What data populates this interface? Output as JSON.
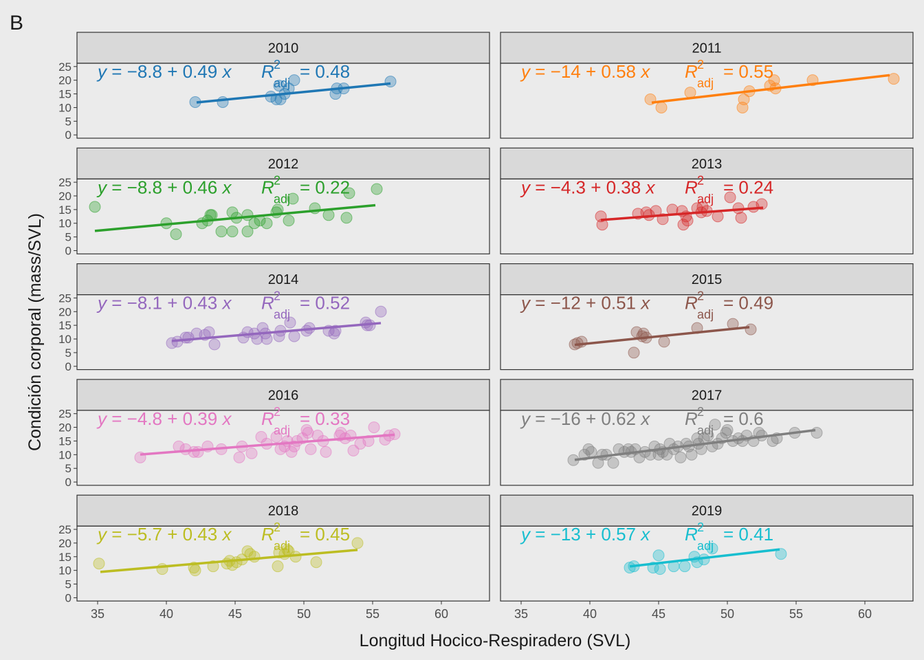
{
  "panel_letter": "B",
  "colors": {
    "background": "#ebebeb",
    "strip": "#d9d9d9",
    "text": "#1a1a1a",
    "tick_text": "#4d4d4d",
    "panel_border": "#333333"
  },
  "chart_data": [
    {
      "type": "scatter",
      "title": "2010",
      "color": "#1f77b4",
      "equation_parts": {
        "intercept": "8.8",
        "slope": "0.49",
        "r2": "0.48"
      },
      "line": {
        "intercept": -8.8,
        "slope": 0.49,
        "x_range": [
          42.2,
          56.3
        ]
      },
      "points": [
        [
          42.1,
          12
        ],
        [
          44.1,
          12
        ],
        [
          47.6,
          14
        ],
        [
          48.0,
          13
        ],
        [
          48.2,
          18
        ],
        [
          48.3,
          13
        ],
        [
          48.6,
          15
        ],
        [
          48.9,
          17
        ],
        [
          49.3,
          20
        ],
        [
          52.3,
          15
        ],
        [
          52.4,
          17
        ],
        [
          52.9,
          17
        ],
        [
          56.3,
          19.5
        ]
      ]
    },
    {
      "type": "scatter",
      "title": "2011",
      "color": "#ff7f0e",
      "equation_parts": {
        "intercept": "14",
        "slope": "0.58",
        "r2": "0.55"
      },
      "line": {
        "intercept": -14,
        "slope": 0.58,
        "x_range": [
          44.5,
          61.8
        ]
      },
      "points": [
        [
          44.4,
          13
        ],
        [
          45.2,
          10
        ],
        [
          47.3,
          15.5
        ],
        [
          51.1,
          10
        ],
        [
          51.2,
          13
        ],
        [
          51.6,
          16
        ],
        [
          53.1,
          18
        ],
        [
          53.4,
          20
        ],
        [
          53.5,
          17
        ],
        [
          56.2,
          20
        ],
        [
          62.1,
          20.5
        ]
      ]
    },
    {
      "type": "scatter",
      "title": "2012",
      "color": "#2ca02c",
      "equation_parts": {
        "intercept": "8.8",
        "slope": "0.46",
        "r2": "0.22"
      },
      "line": {
        "intercept": -8.8,
        "slope": 0.46,
        "x_range": [
          34.8,
          55.2
        ]
      },
      "points": [
        [
          34.8,
          16
        ],
        [
          40.0,
          10
        ],
        [
          40.7,
          6
        ],
        [
          42.6,
          10
        ],
        [
          43.0,
          11
        ],
        [
          43.2,
          13
        ],
        [
          43.3,
          13
        ],
        [
          44.0,
          7
        ],
        [
          44.8,
          7
        ],
        [
          44.8,
          14
        ],
        [
          45.1,
          12
        ],
        [
          45.9,
          7
        ],
        [
          45.9,
          13
        ],
        [
          46.4,
          10
        ],
        [
          46.8,
          11
        ],
        [
          47.3,
          10
        ],
        [
          48.0,
          14
        ],
        [
          48.1,
          15
        ],
        [
          48.9,
          11
        ],
        [
          49.2,
          19
        ],
        [
          50.8,
          15.5
        ],
        [
          51.8,
          13
        ],
        [
          53.1,
          12
        ],
        [
          53.3,
          21
        ],
        [
          55.3,
          22.5
        ]
      ]
    },
    {
      "type": "scatter",
      "title": "2013",
      "color": "#d62728",
      "equation_parts": {
        "intercept": "4.3",
        "slope": "0.38",
        "r2": "0.24"
      },
      "line": {
        "intercept": -4.3,
        "slope": 0.38,
        "x_range": [
          40.8,
          52.6
        ]
      },
      "points": [
        [
          40.8,
          12.5
        ],
        [
          40.9,
          9.5
        ],
        [
          43.5,
          13.5
        ],
        [
          44.1,
          14
        ],
        [
          44.3,
          13
        ],
        [
          44.8,
          14.5
        ],
        [
          45.3,
          11.5
        ],
        [
          46.0,
          15
        ],
        [
          46.7,
          14.5
        ],
        [
          46.8,
          9.5
        ],
        [
          47.0,
          12.5
        ],
        [
          47.1,
          11
        ],
        [
          47.8,
          15.5
        ],
        [
          48.1,
          14
        ],
        [
          48.2,
          16
        ],
        [
          48.5,
          14.5
        ],
        [
          49.3,
          12.5
        ],
        [
          50.2,
          19.5
        ],
        [
          50.8,
          15.5
        ],
        [
          51.0,
          12
        ],
        [
          51.9,
          16
        ],
        [
          52.5,
          17
        ]
      ]
    },
    {
      "type": "scatter",
      "title": "2014",
      "color": "#9467bd",
      "equation_parts": {
        "intercept": "8.1",
        "slope": "0.43",
        "r2": "0.52"
      },
      "line": {
        "intercept": -8.1,
        "slope": 0.43,
        "x_range": [
          40.4,
          55.6
        ]
      },
      "points": [
        [
          40.4,
          8.5
        ],
        [
          40.8,
          9
        ],
        [
          41.4,
          10.5
        ],
        [
          41.6,
          10.5
        ],
        [
          42.2,
          12
        ],
        [
          42.8,
          11.5
        ],
        [
          43.1,
          12.5
        ],
        [
          43.5,
          8
        ],
        [
          45.6,
          10.5
        ],
        [
          45.9,
          12.5
        ],
        [
          46.4,
          12
        ],
        [
          46.6,
          10
        ],
        [
          47.0,
          14
        ],
        [
          47.2,
          12
        ],
        [
          47.3,
          10
        ],
        [
          48.2,
          11
        ],
        [
          48.3,
          13
        ],
        [
          49.3,
          11
        ],
        [
          49.0,
          16
        ],
        [
          50.2,
          13
        ],
        [
          50.4,
          14
        ],
        [
          51.8,
          13
        ],
        [
          52.2,
          12
        ],
        [
          52.3,
          13
        ],
        [
          54.5,
          16
        ],
        [
          54.6,
          15
        ],
        [
          54.8,
          15
        ],
        [
          55.6,
          20
        ]
      ]
    },
    {
      "type": "scatter",
      "title": "2015",
      "color": "#8c564b",
      "equation_parts": {
        "intercept": "12",
        "slope": "0.51",
        "r2": "0.49"
      },
      "line": {
        "intercept": -12,
        "slope": 0.51,
        "x_range": [
          38.9,
          51.6
        ]
      },
      "points": [
        [
          38.9,
          8
        ],
        [
          39.1,
          8.5
        ],
        [
          39.4,
          9
        ],
        [
          43.2,
          5
        ],
        [
          43.4,
          12.5
        ],
        [
          43.8,
          11
        ],
        [
          43.9,
          12
        ],
        [
          44.1,
          10.5
        ],
        [
          45.4,
          9
        ],
        [
          47.8,
          14
        ],
        [
          50.4,
          15.5
        ],
        [
          51.7,
          13.5
        ]
      ]
    },
    {
      "type": "scatter",
      "title": "2016",
      "color": "#e377c2",
      "equation_parts": {
        "intercept": "4.8",
        "slope": "0.39",
        "r2": "0.33"
      },
      "line": {
        "intercept": -4.8,
        "slope": 0.39,
        "x_range": [
          38.1,
          56.6
        ]
      },
      "points": [
        [
          38.1,
          9
        ],
        [
          40.9,
          13
        ],
        [
          41.4,
          12
        ],
        [
          42.0,
          11
        ],
        [
          42.3,
          11
        ],
        [
          43.0,
          13
        ],
        [
          44.0,
          12
        ],
        [
          45.3,
          9
        ],
        [
          45.5,
          13
        ],
        [
          46.2,
          10.5
        ],
        [
          46.9,
          16.5
        ],
        [
          47.3,
          14
        ],
        [
          48.0,
          16.5
        ],
        [
          48.3,
          12
        ],
        [
          48.6,
          13
        ],
        [
          48.8,
          15
        ],
        [
          49.1,
          11
        ],
        [
          49.3,
          13
        ],
        [
          49.5,
          15
        ],
        [
          49.9,
          16
        ],
        [
          50.2,
          19
        ],
        [
          50.3,
          18
        ],
        [
          50.5,
          12
        ],
        [
          51.0,
          17
        ],
        [
          51.4,
          15
        ],
        [
          51.6,
          11
        ],
        [
          52.6,
          17
        ],
        [
          52.7,
          18
        ],
        [
          53.0,
          16
        ],
        [
          53.4,
          17
        ],
        [
          53.6,
          11.5
        ],
        [
          54.1,
          14
        ],
        [
          54.7,
          15
        ],
        [
          55.1,
          20
        ],
        [
          55.9,
          15.5
        ],
        [
          56.2,
          17
        ],
        [
          56.6,
          17.5
        ]
      ]
    },
    {
      "type": "scatter",
      "title": "2017",
      "color": "#7f7f7f",
      "equation_parts": {
        "intercept": "16",
        "slope": "0.62",
        "r2": "0.6"
      },
      "line": {
        "intercept": -16,
        "slope": 0.62,
        "x_range": [
          38.9,
          56.4
        ]
      },
      "points": [
        [
          38.8,
          8
        ],
        [
          39.6,
          10
        ],
        [
          39.9,
          12
        ],
        [
          40.1,
          11
        ],
        [
          40.6,
          7
        ],
        [
          40.9,
          10
        ],
        [
          41.2,
          10
        ],
        [
          41.7,
          7
        ],
        [
          42.1,
          12
        ],
        [
          42.5,
          11
        ],
        [
          42.8,
          12
        ],
        [
          43.0,
          11
        ],
        [
          43.3,
          12
        ],
        [
          43.6,
          9
        ],
        [
          44.0,
          11
        ],
        [
          44.4,
          10
        ],
        [
          44.7,
          13
        ],
        [
          45.0,
          10
        ],
        [
          45.1,
          12
        ],
        [
          45.3,
          11
        ],
        [
          45.6,
          10
        ],
        [
          45.8,
          14
        ],
        [
          46.1,
          12
        ],
        [
          46.4,
          13
        ],
        [
          46.6,
          9
        ],
        [
          47.0,
          14
        ],
        [
          47.2,
          13
        ],
        [
          47.4,
          10
        ],
        [
          47.8,
          16
        ],
        [
          47.9,
          14
        ],
        [
          48.1,
          12
        ],
        [
          48.3,
          16
        ],
        [
          48.6,
          17
        ],
        [
          48.9,
          13
        ],
        [
          49.1,
          21
        ],
        [
          49.3,
          14
        ],
        [
          49.6,
          16
        ],
        [
          49.9,
          18
        ],
        [
          50.0,
          19
        ],
        [
          50.4,
          15
        ],
        [
          50.8,
          16
        ],
        [
          51.1,
          15
        ],
        [
          51.4,
          17
        ],
        [
          51.9,
          15
        ],
        [
          52.3,
          18
        ],
        [
          52.5,
          17
        ],
        [
          53.3,
          15
        ],
        [
          53.6,
          16
        ],
        [
          54.9,
          18
        ],
        [
          56.5,
          18
        ]
      ]
    },
    {
      "type": "scatter",
      "title": "2018",
      "color": "#bcbd22",
      "equation_parts": {
        "intercept": "5.7",
        "slope": "0.43",
        "r2": "0.45"
      },
      "line": {
        "intercept": -5.7,
        "slope": 0.43,
        "x_range": [
          35.2,
          53.9
        ]
      },
      "points": [
        [
          35.1,
          12.5
        ],
        [
          39.7,
          10.5
        ],
        [
          42.0,
          11
        ],
        [
          42.1,
          10
        ],
        [
          43.4,
          11.5
        ],
        [
          44.4,
          12.5
        ],
        [
          44.6,
          13.5
        ],
        [
          44.8,
          12
        ],
        [
          45.1,
          13
        ],
        [
          45.5,
          14
        ],
        [
          45.9,
          17
        ],
        [
          46.1,
          16
        ],
        [
          46.4,
          15
        ],
        [
          48.1,
          11.5
        ],
        [
          48.2,
          16.5
        ],
        [
          48.6,
          16
        ],
        [
          48.8,
          17.5
        ],
        [
          48.9,
          17
        ],
        [
          49.4,
          15
        ],
        [
          50.9,
          13
        ],
        [
          53.9,
          20
        ]
      ]
    },
    {
      "type": "scatter",
      "title": "2019",
      "color": "#17becf",
      "equation_parts": {
        "intercept": "13",
        "slope": "0.57",
        "r2": "0.41"
      },
      "line": {
        "intercept": -13,
        "slope": 0.57,
        "x_range": [
          42.9,
          53.8
        ]
      },
      "points": [
        [
          42.9,
          11
        ],
        [
          43.2,
          11.5
        ],
        [
          44.6,
          11
        ],
        [
          45.0,
          15.5
        ],
        [
          45.1,
          10.5
        ],
        [
          46.1,
          11.5
        ],
        [
          46.9,
          11.5
        ],
        [
          47.6,
          15
        ],
        [
          47.8,
          13
        ],
        [
          48.3,
          14
        ],
        [
          48.9,
          18
        ],
        [
          53.9,
          16
        ]
      ]
    }
  ],
  "axes": {
    "xlabel": "Longitud Hocico-Respiradero (SVL)",
    "ylabel": "Condición corporal (mass/SVL)",
    "xlim": [
      33.5,
      63.5
    ],
    "ylim": [
      -1.2,
      26.2
    ],
    "x_ticks": [
      35,
      40,
      45,
      50,
      55,
      60
    ],
    "y_ticks": [
      0,
      5,
      10,
      15,
      20,
      25
    ],
    "equation_labels": {
      "y": "y",
      "x": "x",
      "R": "R",
      "sup": "2",
      "sub": "adj",
      "minus": "−",
      "plus": "+",
      "equals": "="
    }
  }
}
